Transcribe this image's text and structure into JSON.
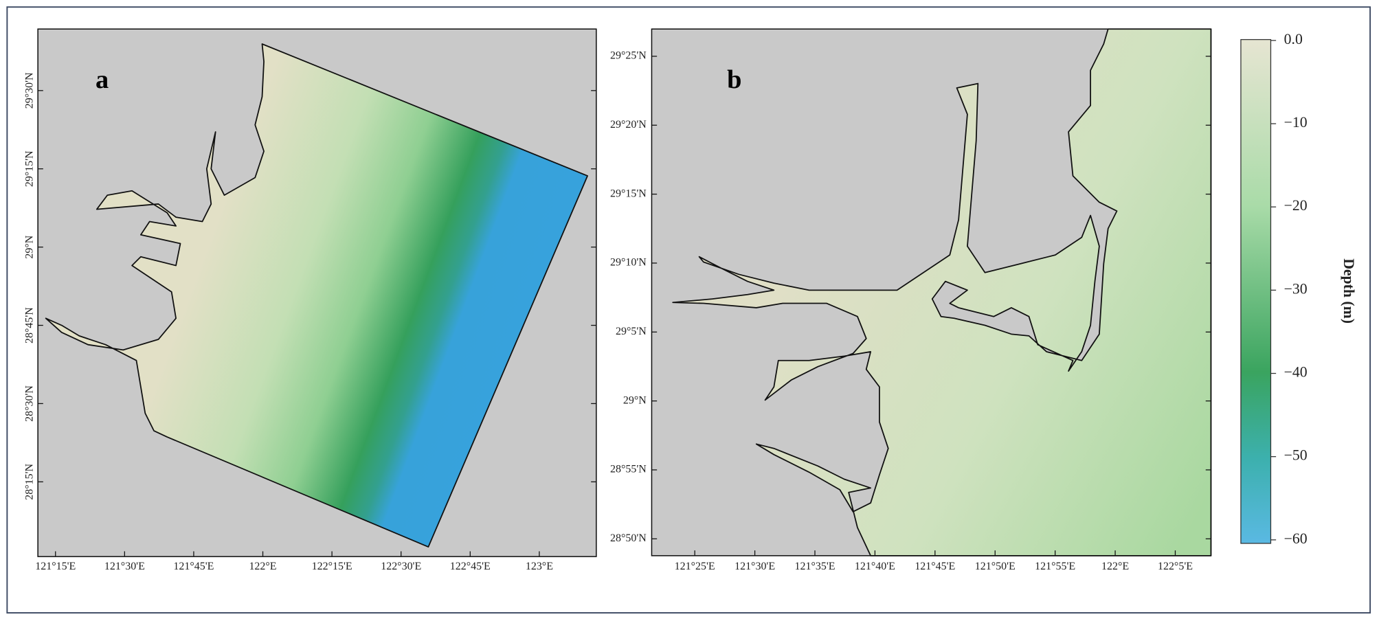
{
  "panels": [
    {
      "label": "a",
      "x_ticks": [
        "121°15'E",
        "121°30'E",
        "121°45'E",
        "122°E",
        "122°15'E",
        "122°30'E",
        "122°45'E",
        "123°E"
      ],
      "y_ticks": [
        "29°30'N",
        "29°15'N",
        "29°N",
        "28°45'N",
        "28°30'N",
        "28°15'N"
      ]
    },
    {
      "label": "b",
      "x_ticks": [
        "121°25'E",
        "121°30'E",
        "121°35'E",
        "121°40'E",
        "121°45'E",
        "121°50'E",
        "121°55'E",
        "122°E",
        "122°5'E"
      ],
      "y_ticks": [
        "29°25'N",
        "29°20'N",
        "29°15'N",
        "29°10'N",
        "29°5'N",
        "29°N",
        "28°55'N",
        "28°50'N"
      ]
    }
  ],
  "colorbar": {
    "title": "Depth (m)",
    "ticks": [
      "0.0",
      "−10",
      "−20",
      "−30",
      "−40",
      "−50",
      "−60"
    ]
  }
}
